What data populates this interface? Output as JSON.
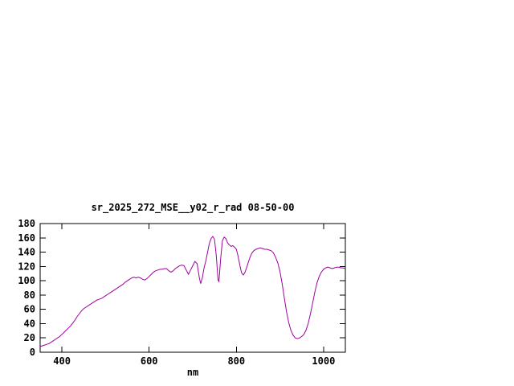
{
  "page": {
    "background_color": "#ffffff",
    "text_color": "#000000"
  },
  "chart_data": {
    "type": "line",
    "title": "sr_2025_272_MSE__y02_r_rad 08-50-00",
    "xlabel": "nm",
    "ylabel": "",
    "xlim": [
      350,
      1050
    ],
    "ylim": [
      0,
      180
    ],
    "xticks": [
      400,
      600,
      800,
      1000
    ],
    "yticks": [
      0,
      20,
      40,
      60,
      80,
      100,
      120,
      140,
      160,
      180
    ],
    "grid": false,
    "legend_position": "none",
    "line_color": "#a000a0",
    "axis_color": "#000000",
    "series": [
      {
        "points": [
          [
            350,
            8
          ],
          [
            355,
            9
          ],
          [
            360,
            10
          ],
          [
            365,
            11
          ],
          [
            370,
            12
          ],
          [
            375,
            14
          ],
          [
            380,
            16
          ],
          [
            385,
            18
          ],
          [
            390,
            20
          ],
          [
            395,
            22
          ],
          [
            400,
            25
          ],
          [
            405,
            28
          ],
          [
            410,
            31
          ],
          [
            415,
            34
          ],
          [
            420,
            37
          ],
          [
            425,
            41
          ],
          [
            430,
            45
          ],
          [
            435,
            50
          ],
          [
            440,
            54
          ],
          [
            445,
            58
          ],
          [
            450,
            61
          ],
          [
            455,
            63
          ],
          [
            460,
            65
          ],
          [
            465,
            67
          ],
          [
            470,
            69
          ],
          [
            475,
            71
          ],
          [
            480,
            73
          ],
          [
            485,
            74
          ],
          [
            490,
            75
          ],
          [
            495,
            77
          ],
          [
            500,
            79
          ],
          [
            505,
            81
          ],
          [
            510,
            83
          ],
          [
            515,
            85
          ],
          [
            520,
            87
          ],
          [
            525,
            89
          ],
          [
            530,
            91
          ],
          [
            535,
            93
          ],
          [
            540,
            95
          ],
          [
            545,
            98
          ],
          [
            550,
            100
          ],
          [
            555,
            102
          ],
          [
            560,
            104
          ],
          [
            565,
            105
          ],
          [
            570,
            104
          ],
          [
            575,
            105
          ],
          [
            580,
            104
          ],
          [
            585,
            102
          ],
          [
            590,
            101
          ],
          [
            595,
            103
          ],
          [
            600,
            106
          ],
          [
            605,
            109
          ],
          [
            610,
            112
          ],
          [
            615,
            114
          ],
          [
            620,
            115
          ],
          [
            625,
            116
          ],
          [
            630,
            116
          ],
          [
            635,
            117
          ],
          [
            640,
            117
          ],
          [
            645,
            114
          ],
          [
            650,
            112
          ],
          [
            655,
            114
          ],
          [
            660,
            117
          ],
          [
            665,
            119
          ],
          [
            670,
            121
          ],
          [
            675,
            122
          ],
          [
            680,
            121
          ],
          [
            685,
            115
          ],
          [
            690,
            109
          ],
          [
            695,
            115
          ],
          [
            700,
            121
          ],
          [
            705,
            127
          ],
          [
            710,
            124
          ],
          [
            715,
            105
          ],
          [
            718,
            96
          ],
          [
            722,
            104
          ],
          [
            726,
            118
          ],
          [
            730,
            128
          ],
          [
            734,
            140
          ],
          [
            738,
            152
          ],
          [
            742,
            159
          ],
          [
            746,
            162
          ],
          [
            750,
            158
          ],
          [
            754,
            135
          ],
          [
            758,
            101
          ],
          [
            760,
            99
          ],
          [
            764,
            130
          ],
          [
            768,
            156
          ],
          [
            772,
            161
          ],
          [
            776,
            159
          ],
          [
            780,
            153
          ],
          [
            784,
            150
          ],
          [
            788,
            148
          ],
          [
            792,
            149
          ],
          [
            796,
            147
          ],
          [
            800,
            144
          ],
          [
            804,
            134
          ],
          [
            808,
            122
          ],
          [
            812,
            111
          ],
          [
            816,
            108
          ],
          [
            820,
            112
          ],
          [
            824,
            119
          ],
          [
            828,
            127
          ],
          [
            832,
            134
          ],
          [
            836,
            139
          ],
          [
            840,
            142
          ],
          [
            845,
            144
          ],
          [
            850,
            145
          ],
          [
            855,
            146
          ],
          [
            860,
            145
          ],
          [
            865,
            144
          ],
          [
            870,
            144
          ],
          [
            875,
            143
          ],
          [
            880,
            142
          ],
          [
            885,
            139
          ],
          [
            890,
            133
          ],
          [
            895,
            125
          ],
          [
            900,
            113
          ],
          [
            905,
            96
          ],
          [
            910,
            76
          ],
          [
            915,
            57
          ],
          [
            920,
            42
          ],
          [
            925,
            31
          ],
          [
            930,
            24
          ],
          [
            935,
            20
          ],
          [
            940,
            19
          ],
          [
            945,
            20
          ],
          [
            950,
            22
          ],
          [
            955,
            25
          ],
          [
            960,
            31
          ],
          [
            965,
            41
          ],
          [
            970,
            54
          ],
          [
            975,
            69
          ],
          [
            980,
            84
          ],
          [
            985,
            97
          ],
          [
            990,
            106
          ],
          [
            995,
            112
          ],
          [
            1000,
            116
          ],
          [
            1005,
            118
          ],
          [
            1010,
            119
          ],
          [
            1015,
            118
          ],
          [
            1020,
            117
          ],
          [
            1025,
            118
          ],
          [
            1030,
            119
          ],
          [
            1035,
            119
          ],
          [
            1040,
            118
          ],
          [
            1045,
            118
          ],
          [
            1050,
            117
          ]
        ]
      }
    ]
  }
}
